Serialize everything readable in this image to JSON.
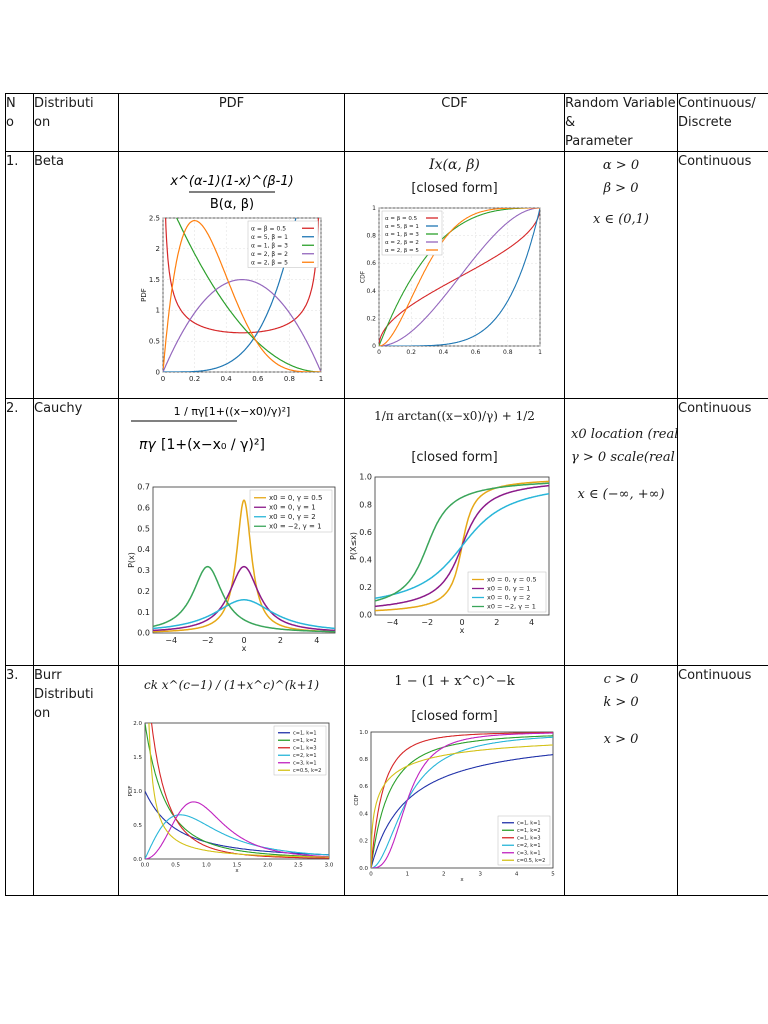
{
  "header": {
    "no": "N\no",
    "distribution": "Distributi\non",
    "pdf": "PDF",
    "cdf": "CDF",
    "random_variable": "Random Variable\n&\nParameter",
    "continuous": "Continuous/\nDiscrete"
  },
  "rows": [
    {
      "no": "1.",
      "name": "Beta",
      "pdf_formula": {
        "num": "x^(α-1)(1-x)^(β-1)",
        "den": "B(α, β)"
      },
      "cdf_formula": "Ix(α, β)",
      "cdf_note": "[closed form]",
      "params": [
        "α > 0",
        "β > 0",
        "x ∈ (0,1)"
      ],
      "type": "Continuous",
      "pdf_chart": {
        "type": "line",
        "xlabel": "",
        "ylabel": "PDF",
        "xlim": [
          0,
          1
        ],
        "ylim": [
          0,
          2.5
        ],
        "xticks": [
          "0",
          "0.2",
          "0.4",
          "0.6",
          "0.8",
          "1"
        ],
        "yticks": [
          "0",
          "0.5",
          "1",
          "1.5",
          "2",
          "2.5"
        ],
        "legend": [
          "α = β = 0.5",
          "α = 5, β = 1",
          "α = 1, β = 3",
          "α = 2, β = 2",
          "α = 2, β = 5"
        ],
        "legend_position": "top-right",
        "colors": [
          "#d62728",
          "#1f77b4",
          "#2ca02c",
          "#9467bd",
          "#ff7f0e"
        ]
      },
      "cdf_chart": {
        "type": "line",
        "xlabel": "",
        "ylabel": "CDF",
        "xlim": [
          0,
          1
        ],
        "ylim": [
          0,
          1
        ],
        "xticks": [
          "0",
          "0.2",
          "0.4",
          "0.6",
          "0.8",
          "1"
        ],
        "yticks": [
          "0",
          "0.2",
          "0.4",
          "0.6",
          "0.8",
          "1"
        ],
        "legend": [
          "α = β = 0.5",
          "α = 5, β = 1",
          "α = 1, β = 3",
          "α = 2, β = 2",
          "α = 2, β = 5"
        ],
        "legend_position": "top-left",
        "colors": [
          "#d62728",
          "#1f77b4",
          "#2ca02c",
          "#9467bd",
          "#ff7f0e"
        ]
      }
    },
    {
      "no": "2.",
      "name": "Cauchy",
      "pdf_formula": "1 / πγ[1+((x−x0)/γ)²]",
      "cdf_formula": "1/π arctan((x−x0)/γ) + 1/2",
      "cdf_note": "[closed form]",
      "params": [
        "x0 location (real)",
        "γ > 0 scale(real",
        "x ∈ (−∞, +∞)"
      ],
      "type": "Continuous",
      "pdf_chart": {
        "type": "line",
        "xlabel": "x",
        "ylabel": "P(x)",
        "xlim": [
          -5,
          5
        ],
        "ylim": [
          0,
          0.7
        ],
        "xticks": [
          "−4",
          "−2",
          "0",
          "2",
          "4"
        ],
        "yticks": [
          "0.0",
          "0.1",
          "0.2",
          "0.3",
          "0.4",
          "0.5",
          "0.6",
          "0.7"
        ],
        "legend": [
          "x0 = 0, γ = 0.5",
          "x0 = 0, γ = 1",
          "x0 = 0, γ = 2",
          "x0 = −2, γ = 1"
        ],
        "legend_position": "top-right",
        "colors": [
          "#e6a817",
          "#8b1a89",
          "#29b6d9",
          "#3aa55a"
        ]
      },
      "cdf_chart": {
        "type": "line",
        "xlabel": "x",
        "ylabel": "P(X≤x)",
        "xlim": [
          -5,
          5
        ],
        "ylim": [
          0,
          1
        ],
        "xticks": [
          "−4",
          "−2",
          "0",
          "2",
          "4"
        ],
        "yticks": [
          "0.0",
          "0.2",
          "0.4",
          "0.6",
          "0.8",
          "1.0"
        ],
        "legend": [
          "x0 = 0, γ = 0.5",
          "x0 = 0, γ = 1",
          "x0 = 0, γ = 2",
          "x0 = −2, γ = 1"
        ],
        "legend_position": "bottom-right",
        "colors": [
          "#e6a817",
          "#8b1a89",
          "#29b6d9",
          "#3aa55a"
        ]
      }
    },
    {
      "no": "3.",
      "name": "Burr\nDistributi\non",
      "pdf_formula": "ck x^(c−1) / (1+x^c)^(k+1)",
      "cdf_formula": "1 − (1 + x^c)^−k",
      "cdf_note": "[closed form]",
      "params": [
        "c > 0",
        "k > 0",
        "x > 0"
      ],
      "type": "Continuous",
      "pdf_chart": {
        "type": "line",
        "xlabel": "x",
        "ylabel": "PDF",
        "xlim": [
          0,
          3
        ],
        "ylim": [
          0,
          2
        ],
        "xticks": [
          "0.0",
          "0.5",
          "1.0",
          "1.5",
          "2.0",
          "2.5",
          "3.0"
        ],
        "yticks": [
          "0.0",
          "0.5",
          "1.0",
          "1.5",
          "2.0"
        ],
        "legend": [
          "c=1, k=1",
          "c=1, k=2",
          "c=1, k=3",
          "c=2, k=1",
          "c=3, k=1",
          "c=0.5, k=2"
        ],
        "legend_position": "top-right",
        "colors": [
          "#2233aa",
          "#2ca02c",
          "#d62728",
          "#29b6d9",
          "#c023c0",
          "#d4c21a"
        ]
      },
      "cdf_chart": {
        "type": "line",
        "xlabel": "x",
        "ylabel": "CDF",
        "xlim": [
          0,
          5
        ],
        "ylim": [
          0,
          1
        ],
        "xticks": [
          "0",
          "1",
          "2",
          "3",
          "4",
          "5"
        ],
        "yticks": [
          "0.0",
          "0.2",
          "0.4",
          "0.6",
          "0.8",
          "1.0"
        ],
        "legend": [
          "c=1, k=1",
          "c=1, k=2",
          "c=1, k=3",
          "c=2, k=1",
          "c=3, k=1",
          "c=0.5, k=2"
        ],
        "legend_position": "bottom-right",
        "colors": [
          "#2233aa",
          "#2ca02c",
          "#d62728",
          "#29b6d9",
          "#c023c0",
          "#d4c21a"
        ]
      }
    }
  ]
}
